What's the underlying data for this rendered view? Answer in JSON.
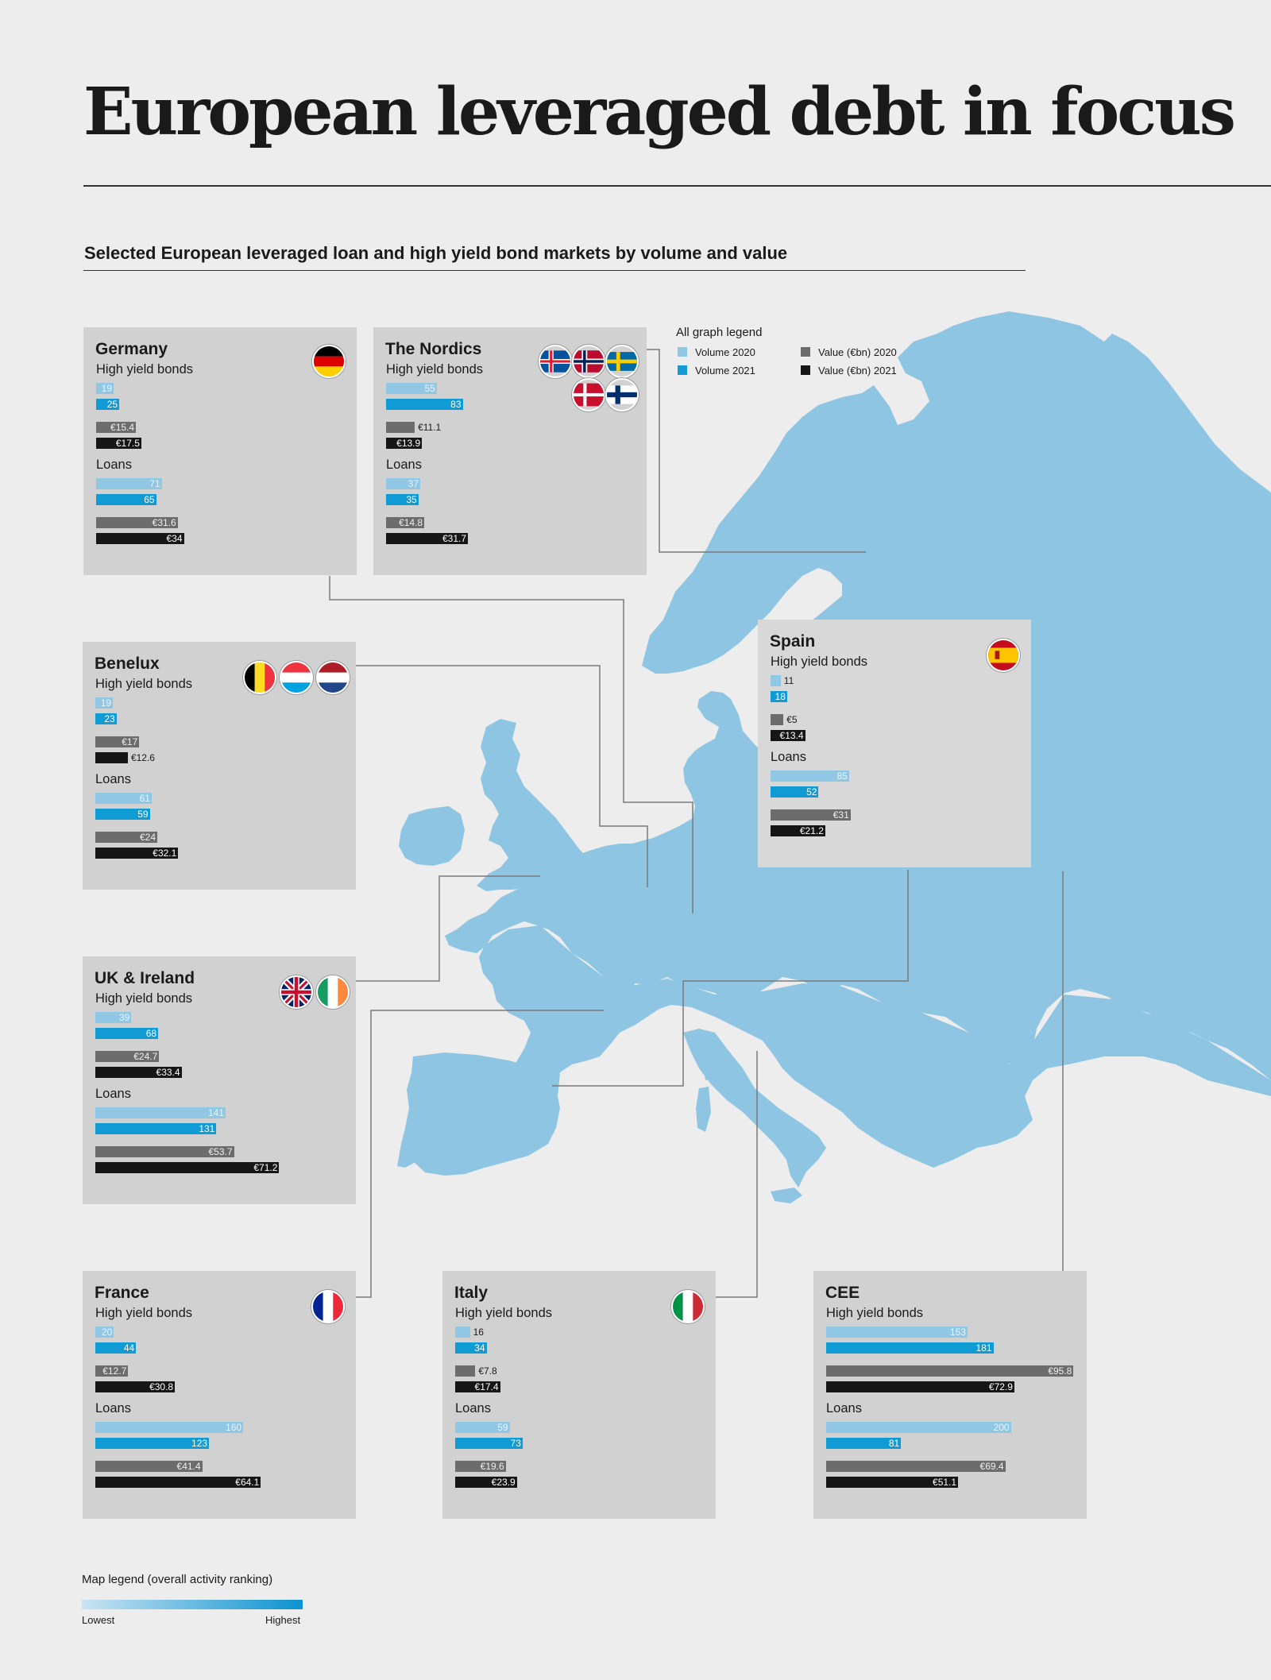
{
  "title": "European leveraged debt in focus",
  "subtitle": "Selected European leveraged loan and high yield bond markets by volume and value",
  "colors": {
    "volume_2020": "#8fc7e4",
    "volume_2021": "#119bd5",
    "value_2020": "#6c6c6c",
    "value_2021": "#161616",
    "map": "#8ec5e3",
    "box": "#d1d1d1"
  },
  "graph_legend": {
    "title": "All graph legend",
    "volume_2020": "Volume 2020",
    "volume_2021": "Volume 2021",
    "value_2020": "Value (€bn) 2020",
    "value_2021": "Value (€bn) 2021"
  },
  "map_legend": {
    "title": "Map legend (overall activity ranking)",
    "low": "Lowest",
    "high": "Highest"
  },
  "chart_data": {
    "type": "bar",
    "orientation": "horizontal",
    "section_labels": [
      "High yield bonds",
      "Loans"
    ],
    "series": [
      "Volume 2020",
      "Volume 2021",
      "Value (€bn) 2020",
      "Value (€bn) 2021"
    ],
    "markets": [
      {
        "id": "germany",
        "name": "Germany",
        "flags": [
          "germany-flag"
        ],
        "hy": {
          "vol2020": 19,
          "vol2021": 25,
          "val2020": 15.4,
          "val2021": 17.5,
          "val2020_label": "€15.4",
          "val2021_label": "€17.5"
        },
        "loans": {
          "vol2020": 71,
          "vol2021": 65,
          "val2020": 31.6,
          "val2021": 34,
          "val2020_label": "€31.6",
          "val2021_label": "€34"
        }
      },
      {
        "id": "nordics",
        "name": "The Nordics",
        "flags": [
          "iceland-flag",
          "norway-flag",
          "sweden-flag",
          "denmark-flag",
          "finland-flag"
        ],
        "hy": {
          "vol2020": 55,
          "vol2021": 83,
          "val2020": 11.1,
          "val2021": 13.9,
          "val2020_label": "€11.1",
          "val2021_label": "€13.9"
        },
        "loans": {
          "vol2020": 37,
          "vol2021": 35,
          "val2020": 14.8,
          "val2021": 31.7,
          "val2020_label": "€14.8",
          "val2021_label": "€31.7"
        }
      },
      {
        "id": "spain",
        "name": "Spain",
        "flags": [
          "spain-flag"
        ],
        "hy": {
          "vol2020": 11,
          "vol2021": 18,
          "val2020": 5,
          "val2021": 13.4,
          "val2020_label": "€5",
          "val2021_label": "€13.4"
        },
        "loans": {
          "vol2020": 85,
          "vol2021": 52,
          "val2020": 31,
          "val2021": 21.2,
          "val2020_label": "€31",
          "val2021_label": "€21.2"
        }
      },
      {
        "id": "benelux",
        "name": "Benelux",
        "flags": [
          "belgium-flag",
          "luxembourg-flag",
          "netherlands-flag"
        ],
        "hy": {
          "vol2020": 19,
          "vol2021": 23,
          "val2020": 17,
          "val2021": 12.6,
          "val2020_label": "€17",
          "val2021_label": "€12.6"
        },
        "loans": {
          "vol2020": 61,
          "vol2021": 59,
          "val2020": 24,
          "val2021": 32.1,
          "val2020_label": "€24",
          "val2021_label": "€32.1"
        }
      },
      {
        "id": "uk",
        "name": "UK & Ireland",
        "flags": [
          "uk-flag",
          "ireland-flag"
        ],
        "hy": {
          "vol2020": 39,
          "vol2021": 68,
          "val2020": 24.7,
          "val2021": 33.4,
          "val2020_label": "€24.7",
          "val2021_label": "€33.4"
        },
        "loans": {
          "vol2020": 141,
          "vol2021": 131,
          "val2020": 53.7,
          "val2021": 71.2,
          "val2020_label": "€53.7",
          "val2021_label": "€71.2"
        }
      },
      {
        "id": "france",
        "name": "France",
        "flags": [
          "france-flag"
        ],
        "hy": {
          "vol2020": 20,
          "vol2021": 44,
          "val2020": 12.7,
          "val2021": 30.8,
          "val2020_label": "€12.7",
          "val2021_label": "€30.8"
        },
        "loans": {
          "vol2020": 160,
          "vol2021": 123,
          "val2020": 41.4,
          "val2021": 64.1,
          "val2020_label": "€41.4",
          "val2021_label": "€64.1"
        }
      },
      {
        "id": "italy",
        "name": "Italy",
        "flags": [
          "italy-flag"
        ],
        "hy": {
          "vol2020": 16,
          "vol2021": 34,
          "val2020": 7.8,
          "val2021": 17.4,
          "val2020_label": "€7.8",
          "val2021_label": "€17.4"
        },
        "loans": {
          "vol2020": 59,
          "vol2021": 73,
          "val2020": 19.6,
          "val2021": 23.9,
          "val2020_label": "€19.6",
          "val2021_label": "€23.9"
        }
      },
      {
        "id": "cee",
        "name": "CEE",
        "flags": [],
        "hy": {
          "vol2020": 153,
          "vol2021": 181,
          "val2020": 95.8,
          "val2021": 72.9,
          "val2020_label": "€95.8",
          "val2021_label": "€72.9"
        },
        "loans": {
          "vol2020": 200,
          "vol2021": 81,
          "val2020": 69.4,
          "val2021": 51.1,
          "val2020_label": "€69.4",
          "val2021_label": "€51.1"
        }
      }
    ]
  }
}
